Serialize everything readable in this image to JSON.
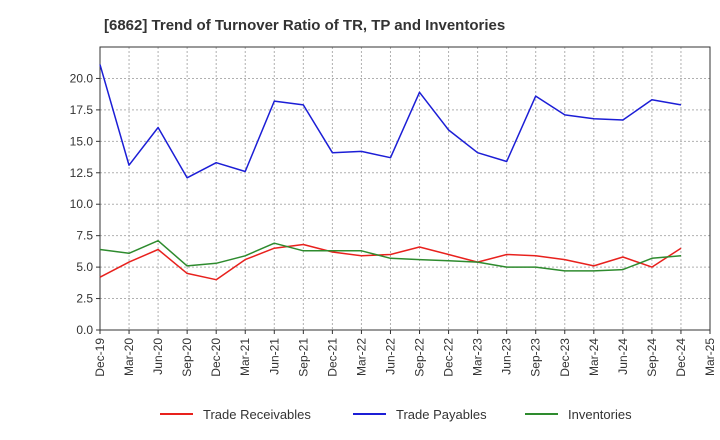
{
  "chart_data": {
    "type": "line",
    "title": "[6862]  Trend of Turnover Ratio of TR, TP and Inventories",
    "xlabel": "",
    "ylabel": "",
    "ylim": [
      0,
      22.5
    ],
    "yticks": [
      "0.0",
      "2.5",
      "5.0",
      "7.5",
      "10.0",
      "12.5",
      "15.0",
      "17.5",
      "20.0"
    ],
    "x_tick_labels": [
      "Dec-19",
      "Mar-20",
      "Jun-20",
      "Sep-20",
      "Dec-20",
      "Mar-21",
      "Jun-21",
      "Sep-21",
      "Dec-21",
      "Mar-22",
      "Jun-22",
      "Sep-22",
      "Dec-22",
      "Mar-23",
      "Jun-23",
      "Sep-23",
      "Dec-23",
      "Mar-24",
      "Jun-24",
      "Sep-24",
      "Dec-24",
      "Mar-25"
    ],
    "x": [
      "Dec-19",
      "Mar-20",
      "Jun-20",
      "Sep-20",
      "Dec-20",
      "Mar-21",
      "Jun-21",
      "Sep-21",
      "Dec-21",
      "Mar-22",
      "Jun-22",
      "Sep-22",
      "Dec-22",
      "Mar-23",
      "Jun-23",
      "Sep-23",
      "Dec-23",
      "Mar-24",
      "Jun-24",
      "Sep-24",
      "Dec-24"
    ],
    "grid": true,
    "legend_position": "bottom",
    "series": [
      {
        "name": "Trade Receivables",
        "color": "#e8211d",
        "values": [
          4.2,
          5.4,
          6.4,
          4.5,
          4.0,
          5.6,
          6.5,
          6.8,
          6.2,
          5.9,
          6.0,
          6.6,
          6.0,
          5.4,
          6.0,
          5.9,
          5.6,
          5.1,
          5.8,
          5.0,
          6.5
        ]
      },
      {
        "name": "Trade Payables",
        "color": "#1c1ed6",
        "values": [
          21.1,
          13.1,
          16.1,
          12.1,
          13.3,
          12.6,
          18.2,
          17.9,
          14.1,
          14.2,
          13.7,
          18.9,
          15.9,
          14.1,
          13.4,
          18.6,
          17.1,
          16.8,
          16.7,
          18.3,
          17.9
        ]
      },
      {
        "name": "Inventories",
        "color": "#2e8b2e",
        "values": [
          6.4,
          6.1,
          7.1,
          5.1,
          5.3,
          5.9,
          6.9,
          6.3,
          6.3,
          6.3,
          5.7,
          5.6,
          5.5,
          5.4,
          5.0,
          5.0,
          4.7,
          4.7,
          4.8,
          5.7,
          5.9
        ]
      }
    ]
  }
}
